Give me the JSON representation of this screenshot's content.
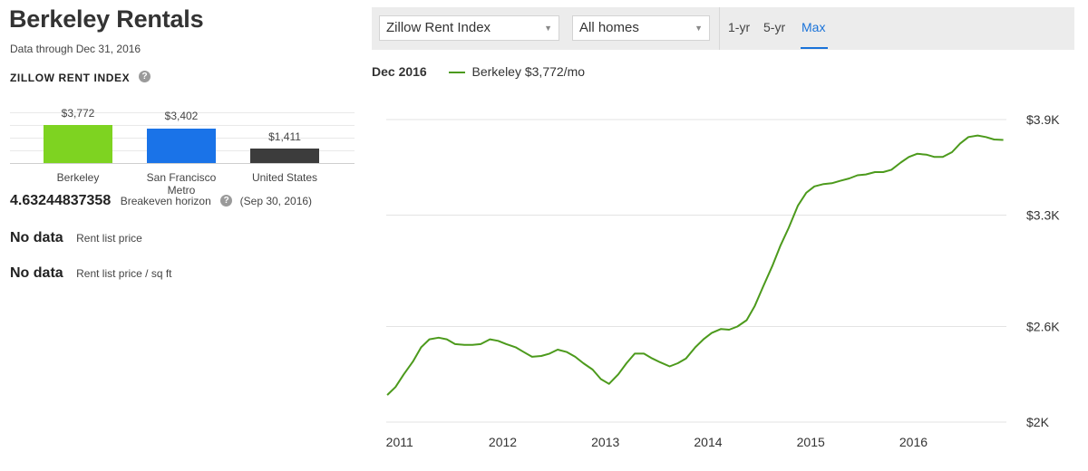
{
  "page": {
    "title": "Berkeley Rentals",
    "subtitle": "Data through Dec 31, 2016",
    "section_label": "ZILLOW RENT INDEX",
    "help_glyph": "?"
  },
  "comparison": {
    "bars": [
      {
        "label": "Berkeley",
        "display": "$3,772",
        "value": 3772,
        "color": "#7ed321"
      },
      {
        "label": "San Francisco Metro",
        "display": "$3,402",
        "value": 3402,
        "color": "#1a73e8"
      },
      {
        "label": "United States",
        "display": "$1,411",
        "value": 1411,
        "color": "#3c3c3c"
      }
    ]
  },
  "metrics": {
    "breakeven": {
      "value": "4.63244837358",
      "label": "Breakeven horizon",
      "date": "(Sep 30, 2016)"
    },
    "rent_list_price": {
      "value": "No data",
      "label": "Rent list price"
    },
    "rent_list_price_sqft": {
      "value": "No data",
      "label": "Rent list price / sq ft"
    }
  },
  "controls": {
    "index_select": "Zillow Rent Index",
    "home_select": "All homes",
    "ranges": [
      "1-yr",
      "5-yr",
      "Max"
    ],
    "active_range": "Max"
  },
  "legend": {
    "date": "Dec 2016",
    "series_label": "Berkeley $3,772/mo",
    "color": "#4c9a1c"
  },
  "chart_data": {
    "type": "line",
    "x_ticks": [
      "2011",
      "2012",
      "2013",
      "2014",
      "2015",
      "2016"
    ],
    "y_ticks": [
      "$2K",
      "$2.6K",
      "$3.3K",
      "$3.9K"
    ],
    "y_tick_values": [
      2000,
      2600,
      3300,
      3900
    ],
    "ylim": [
      2000,
      3900
    ],
    "xlim": [
      2010.95,
      2016.99
    ],
    "grid": true,
    "series": [
      {
        "name": "Berkeley",
        "color": "#4c9a1c",
        "x": [
          2010.96,
          2011.04,
          2011.12,
          2011.21,
          2011.29,
          2011.37,
          2011.46,
          2011.54,
          2011.62,
          2011.71,
          2011.79,
          2011.87,
          2011.96,
          2012.04,
          2012.12,
          2012.21,
          2012.29,
          2012.37,
          2012.46,
          2012.54,
          2012.62,
          2012.71,
          2012.79,
          2012.87,
          2012.96,
          2013.04,
          2013.12,
          2013.21,
          2013.29,
          2013.37,
          2013.46,
          2013.54,
          2013.62,
          2013.71,
          2013.79,
          2013.87,
          2013.96,
          2014.04,
          2014.12,
          2014.21,
          2014.29,
          2014.37,
          2014.46,
          2014.54,
          2014.62,
          2014.71,
          2014.79,
          2014.87,
          2014.96,
          2015.04,
          2015.12,
          2015.21,
          2015.29,
          2015.37,
          2015.46,
          2015.54,
          2015.62,
          2015.71,
          2015.79,
          2015.87,
          2015.96,
          2016.04,
          2016.12,
          2016.21,
          2016.29,
          2016.37,
          2016.46,
          2016.54,
          2016.62,
          2016.71,
          2016.79,
          2016.87,
          2016.96
        ],
        "y": [
          2170,
          2220,
          2300,
          2380,
          2470,
          2520,
          2530,
          2520,
          2490,
          2485,
          2485,
          2490,
          2520,
          2510,
          2490,
          2470,
          2440,
          2410,
          2415,
          2430,
          2455,
          2440,
          2410,
          2370,
          2330,
          2270,
          2240,
          2300,
          2370,
          2430,
          2430,
          2400,
          2375,
          2350,
          2370,
          2400,
          2470,
          2520,
          2560,
          2585,
          2580,
          2600,
          2640,
          2730,
          2850,
          2980,
          3110,
          3220,
          3360,
          3440,
          3480,
          3495,
          3500,
          3515,
          3530,
          3550,
          3555,
          3570,
          3570,
          3585,
          3630,
          3665,
          3685,
          3680,
          3665,
          3665,
          3695,
          3750,
          3790,
          3800,
          3790,
          3775,
          3772
        ]
      }
    ]
  }
}
